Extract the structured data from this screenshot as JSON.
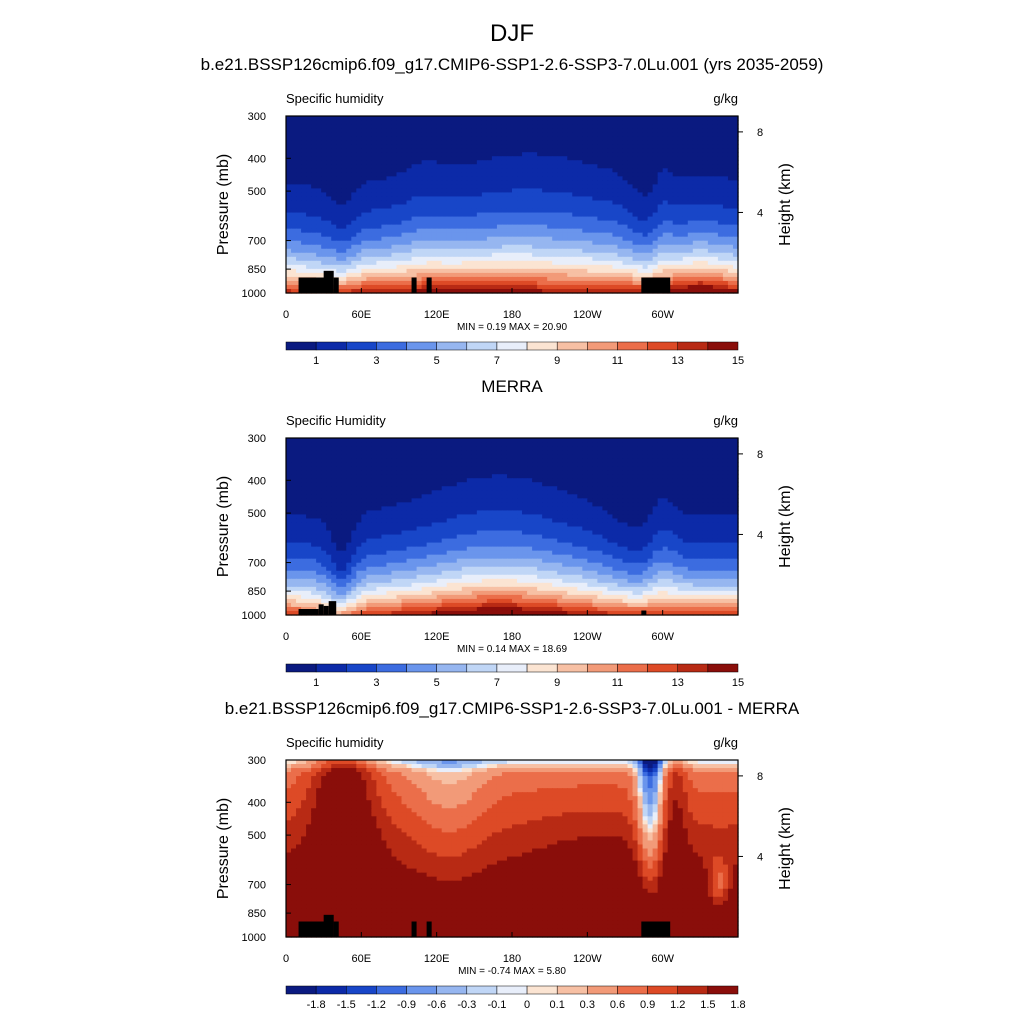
{
  "figure": {
    "title": "DJF",
    "colors": {
      "abs_scale": [
        "#0a1a80",
        "#0c2aa8",
        "#1846c8",
        "#3c6ce0",
        "#6a95ec",
        "#96b6f0",
        "#c0d6f6",
        "#e8eefa",
        "#fbe4d2",
        "#f7c0a4",
        "#f29a78",
        "#eb6e4a",
        "#dd4a26",
        "#b82a14",
        "#8a0e0a"
      ],
      "diff_scale": [
        "#0a1a80",
        "#0c2aa8",
        "#1846c8",
        "#3c6ce0",
        "#6a95ec",
        "#96b6f0",
        "#c0d6f6",
        "#e8eefa",
        "#fbe4d2",
        "#f7c0a4",
        "#f29a78",
        "#eb6e4a",
        "#dd4a26",
        "#b82a14",
        "#8a0e0a"
      ]
    }
  },
  "chart_data": [
    {
      "type": "heatmap",
      "title": "",
      "subtitle": "b.e21.BSSP126cmip6.f09_g17.CMIP6-SSP1-2.6-SSP3-7.0Lu.001 (yrs 2035-2059)",
      "left_label": "Specific humidity",
      "right_label": "g/kg",
      "ylabel": "Pressure (mb)",
      "y2label": "Height (km)",
      "xticks": [
        "0",
        "60E",
        "120E",
        "180",
        "120W",
        "60W"
      ],
      "yticks": [
        "300",
        "400",
        "500",
        "700",
        "850",
        "1000"
      ],
      "y2ticks": [
        "8",
        "4"
      ],
      "stats_text": "MIN =   0.19  MAX =  20.90",
      "min": 0.19,
      "max": 20.9,
      "colorbar_labels": [
        "1",
        "3",
        "5",
        "7",
        "9",
        "11",
        "13",
        "15"
      ],
      "field": "model"
    },
    {
      "type": "heatmap",
      "title": "",
      "subtitle": "MERRA",
      "left_label": "Specific Humidity",
      "right_label": "g/kg",
      "ylabel": "Pressure (mb)",
      "y2label": "Height (km)",
      "xticks": [
        "0",
        "60E",
        "120E",
        "180",
        "120W",
        "60W"
      ],
      "yticks": [
        "300",
        "400",
        "500",
        "700",
        "850",
        "1000"
      ],
      "y2ticks": [
        "8",
        "4"
      ],
      "stats_text": "MIN =   0.14  MAX =  18.69",
      "min": 0.14,
      "max": 18.69,
      "colorbar_labels": [
        "1",
        "3",
        "5",
        "7",
        "9",
        "11",
        "13",
        "15"
      ],
      "field": "obs"
    },
    {
      "type": "heatmap",
      "title": "",
      "subtitle": "b.e21.BSSP126cmip6.f09_g17.CMIP6-SSP1-2.6-SSP3-7.0Lu.001 - MERRA",
      "left_label": "Specific humidity",
      "right_label": "g/kg",
      "ylabel": "Pressure (mb)",
      "y2label": "Height (km)",
      "xticks": [
        "0",
        "60E",
        "120E",
        "180",
        "120W",
        "60W"
      ],
      "yticks": [
        "300",
        "400",
        "500",
        "700",
        "850",
        "1000"
      ],
      "y2ticks": [
        "8",
        "4"
      ],
      "stats_text": "MIN =  -0.74  MAX =   5.80",
      "min": -0.74,
      "max": 5.8,
      "colorbar_labels": [
        "-1.8",
        "-1.5",
        "-1.2",
        "-0.9",
        "-0.6",
        "-0.3",
        "-0.1",
        "0",
        "0.1",
        "0.3",
        "0.6",
        "0.9",
        "1.2",
        "1.5",
        "1.8"
      ],
      "field": "diff"
    }
  ]
}
